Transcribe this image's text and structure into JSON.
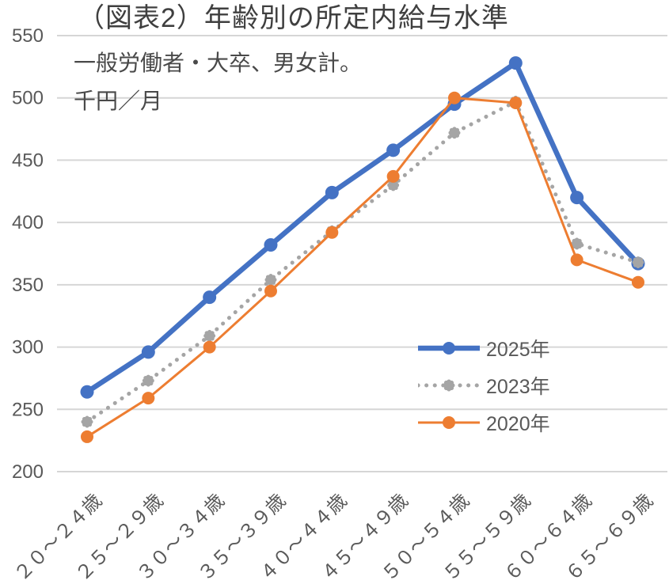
{
  "header": {
    "title": "（図表2）年齢別の所定内給与水準",
    "subtitle": "一般労働者・大卒、男女計。",
    "unit": "千円／月"
  },
  "chart_data": {
    "type": "line",
    "title": "（図表2）年齢別の所定内給与水準",
    "subtitle": "一般労働者・大卒、男女計。",
    "ylabel": "千円／月",
    "xlabel": "",
    "categories": [
      "２０～２４歳",
      "２５～２９歳",
      "３０～３４歳",
      "３５～３９歳",
      "４０～４４歳",
      "４５～４９歳",
      "５０～５４歳",
      "５５～５９歳",
      "６０～６４歳",
      "６５～６９歳"
    ],
    "series": [
      {
        "name": "2025年",
        "color": "#4472C4",
        "line_style": "solid-thick",
        "marker": "circle",
        "values": [
          264,
          296,
          340,
          382,
          424,
          458,
          495,
          528,
          420,
          367
        ]
      },
      {
        "name": "2023年",
        "color": "#A5A5A5",
        "line_style": "dotted",
        "marker": "burst",
        "values": [
          240,
          273,
          309,
          354,
          393,
          430,
          472,
          497,
          383,
          368
        ]
      },
      {
        "name": "2020年",
        "color": "#ED7D31",
        "line_style": "solid-thin",
        "marker": "circle",
        "values": [
          228,
          259,
          300,
          345,
          392,
          437,
          500,
          496,
          370,
          352
        ]
      }
    ],
    "ylim": [
      200,
      550
    ],
    "yticks": [
      550,
      500,
      450,
      400,
      350,
      300,
      250,
      200
    ],
    "ytick_step": 50,
    "grid": "horizontal",
    "gridline_color": "#D6D6D6",
    "axis_label_color": "#595959",
    "xlabel_rotation": -45,
    "legend_position": "center-right"
  }
}
